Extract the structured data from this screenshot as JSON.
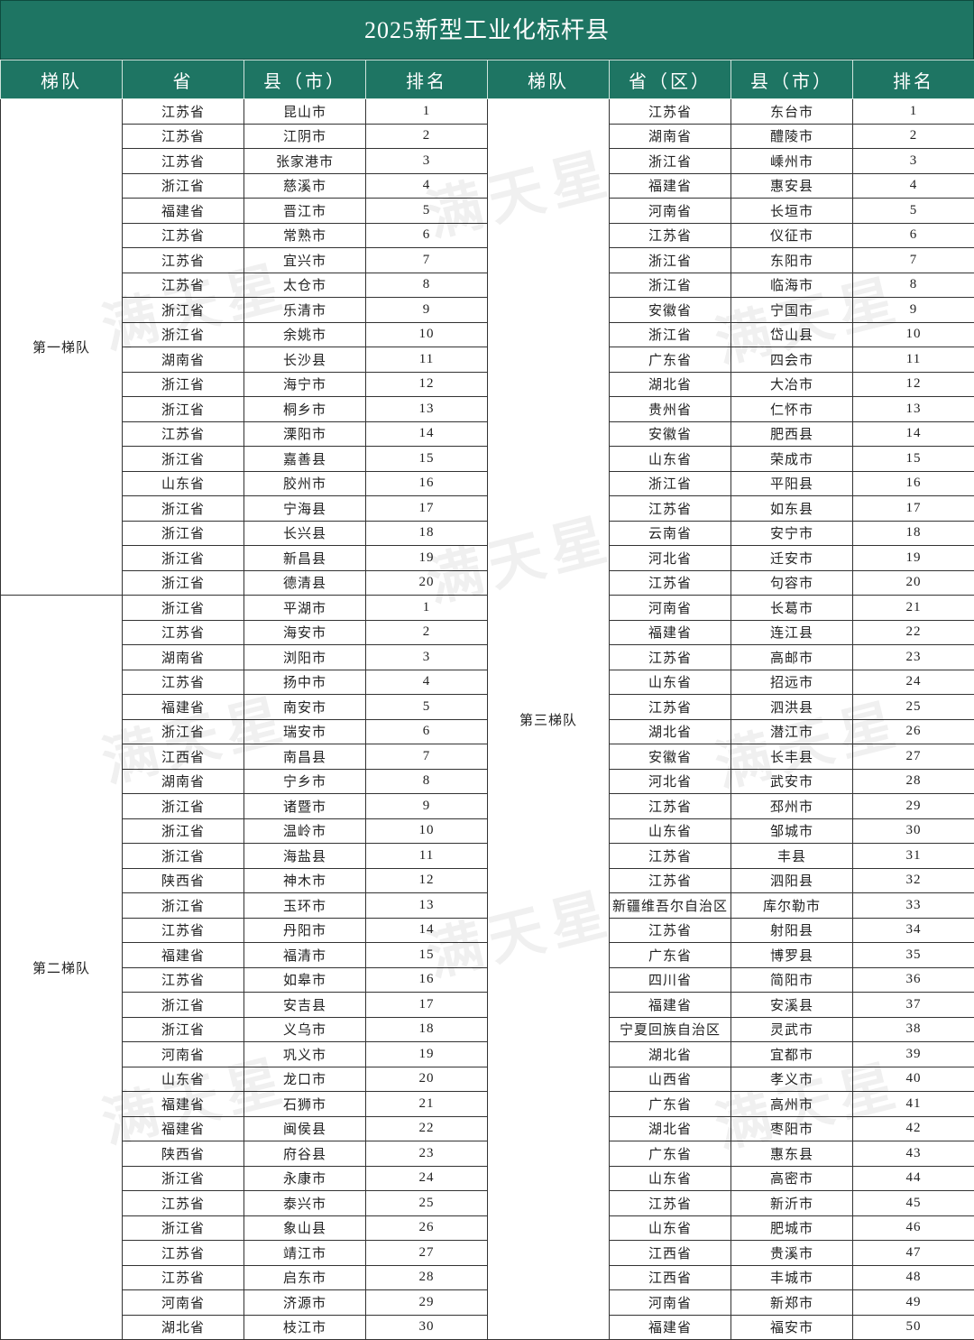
{
  "title": "2025新型工业化标杆县",
  "watermark": "满天星",
  "headers": [
    "梯队",
    "省",
    "县（市）",
    "排名",
    "梯队",
    "省（区）",
    "县（市）",
    "排名"
  ],
  "left_tiers": [
    {
      "tier": "第一梯队",
      "rows": [
        [
          "江苏省",
          "昆山市",
          1
        ],
        [
          "江苏省",
          "江阴市",
          2
        ],
        [
          "江苏省",
          "张家港市",
          3
        ],
        [
          "浙江省",
          "慈溪市",
          4
        ],
        [
          "福建省",
          "晋江市",
          5
        ],
        [
          "江苏省",
          "常熟市",
          6
        ],
        [
          "江苏省",
          "宜兴市",
          7
        ],
        [
          "江苏省",
          "太仓市",
          8
        ],
        [
          "浙江省",
          "乐清市",
          9
        ],
        [
          "浙江省",
          "余姚市",
          10
        ],
        [
          "湖南省",
          "长沙县",
          11
        ],
        [
          "浙江省",
          "海宁市",
          12
        ],
        [
          "浙江省",
          "桐乡市",
          13
        ],
        [
          "江苏省",
          "溧阳市",
          14
        ],
        [
          "浙江省",
          "嘉善县",
          15
        ],
        [
          "山东省",
          "胶州市",
          16
        ],
        [
          "浙江省",
          "宁海县",
          17
        ],
        [
          "浙江省",
          "长兴县",
          18
        ],
        [
          "浙江省",
          "新昌县",
          19
        ],
        [
          "浙江省",
          "德清县",
          20
        ]
      ]
    },
    {
      "tier": "第二梯队",
      "rows": [
        [
          "浙江省",
          "平湖市",
          1
        ],
        [
          "江苏省",
          "海安市",
          2
        ],
        [
          "湖南省",
          "浏阳市",
          3
        ],
        [
          "江苏省",
          "扬中市",
          4
        ],
        [
          "福建省",
          "南安市",
          5
        ],
        [
          "浙江省",
          "瑞安市",
          6
        ],
        [
          "江西省",
          "南昌县",
          7
        ],
        [
          "湖南省",
          "宁乡市",
          8
        ],
        [
          "浙江省",
          "诸暨市",
          9
        ],
        [
          "浙江省",
          "温岭市",
          10
        ],
        [
          "浙江省",
          "海盐县",
          11
        ],
        [
          "陕西省",
          "神木市",
          12
        ],
        [
          "浙江省",
          "玉环市",
          13
        ],
        [
          "江苏省",
          "丹阳市",
          14
        ],
        [
          "福建省",
          "福清市",
          15
        ],
        [
          "江苏省",
          "如皋市",
          16
        ],
        [
          "浙江省",
          "安吉县",
          17
        ],
        [
          "浙江省",
          "义乌市",
          18
        ],
        [
          "河南省",
          "巩义市",
          19
        ],
        [
          "山东省",
          "龙口市",
          20
        ],
        [
          "福建省",
          "石狮市",
          21
        ],
        [
          "福建省",
          "闽侯县",
          22
        ],
        [
          "陕西省",
          "府谷县",
          23
        ],
        [
          "浙江省",
          "永康市",
          24
        ],
        [
          "江苏省",
          "泰兴市",
          25
        ],
        [
          "浙江省",
          "象山县",
          26
        ],
        [
          "江苏省",
          "靖江市",
          27
        ],
        [
          "江苏省",
          "启东市",
          28
        ],
        [
          "河南省",
          "济源市",
          29
        ],
        [
          "湖北省",
          "枝江市",
          30
        ]
      ]
    }
  ],
  "right_tier": {
    "tier": "第三梯队",
    "rows": [
      [
        "江苏省",
        "东台市",
        1
      ],
      [
        "湖南省",
        "醴陵市",
        2
      ],
      [
        "浙江省",
        "嵊州市",
        3
      ],
      [
        "福建省",
        "惠安县",
        4
      ],
      [
        "河南省",
        "长垣市",
        5
      ],
      [
        "江苏省",
        "仪征市",
        6
      ],
      [
        "浙江省",
        "东阳市",
        7
      ],
      [
        "浙江省",
        "临海市",
        8
      ],
      [
        "安徽省",
        "宁国市",
        9
      ],
      [
        "浙江省",
        "岱山县",
        10
      ],
      [
        "广东省",
        "四会市",
        11
      ],
      [
        "湖北省",
        "大冶市",
        12
      ],
      [
        "贵州省",
        "仁怀市",
        13
      ],
      [
        "安徽省",
        "肥西县",
        14
      ],
      [
        "山东省",
        "荣成市",
        15
      ],
      [
        "浙江省",
        "平阳县",
        16
      ],
      [
        "江苏省",
        "如东县",
        17
      ],
      [
        "云南省",
        "安宁市",
        18
      ],
      [
        "河北省",
        "迁安市",
        19
      ],
      [
        "江苏省",
        "句容市",
        20
      ],
      [
        "河南省",
        "长葛市",
        21
      ],
      [
        "福建省",
        "连江县",
        22
      ],
      [
        "江苏省",
        "高邮市",
        23
      ],
      [
        "山东省",
        "招远市",
        24
      ],
      [
        "江苏省",
        "泗洪县",
        25
      ],
      [
        "湖北省",
        "潜江市",
        26
      ],
      [
        "安徽省",
        "长丰县",
        27
      ],
      [
        "河北省",
        "武安市",
        28
      ],
      [
        "江苏省",
        "邳州市",
        29
      ],
      [
        "山东省",
        "邹城市",
        30
      ],
      [
        "江苏省",
        "丰县",
        31
      ],
      [
        "江苏省",
        "泗阳县",
        32
      ],
      [
        "新疆维吾尔自治区",
        "库尔勒市",
        33
      ],
      [
        "江苏省",
        "射阳县",
        34
      ],
      [
        "广东省",
        "博罗县",
        35
      ],
      [
        "四川省",
        "简阳市",
        36
      ],
      [
        "福建省",
        "安溪县",
        37
      ],
      [
        "宁夏回族自治区",
        "灵武市",
        38
      ],
      [
        "湖北省",
        "宜都市",
        39
      ],
      [
        "山西省",
        "孝义市",
        40
      ],
      [
        "广东省",
        "高州市",
        41
      ],
      [
        "湖北省",
        "枣阳市",
        42
      ],
      [
        "广东省",
        "惠东县",
        43
      ],
      [
        "山东省",
        "高密市",
        44
      ],
      [
        "江苏省",
        "新沂市",
        45
      ],
      [
        "山东省",
        "肥城市",
        46
      ],
      [
        "江西省",
        "贵溪市",
        47
      ],
      [
        "江西省",
        "丰城市",
        48
      ],
      [
        "河南省",
        "新郑市",
        49
      ],
      [
        "福建省",
        "福安市",
        50
      ]
    ]
  }
}
